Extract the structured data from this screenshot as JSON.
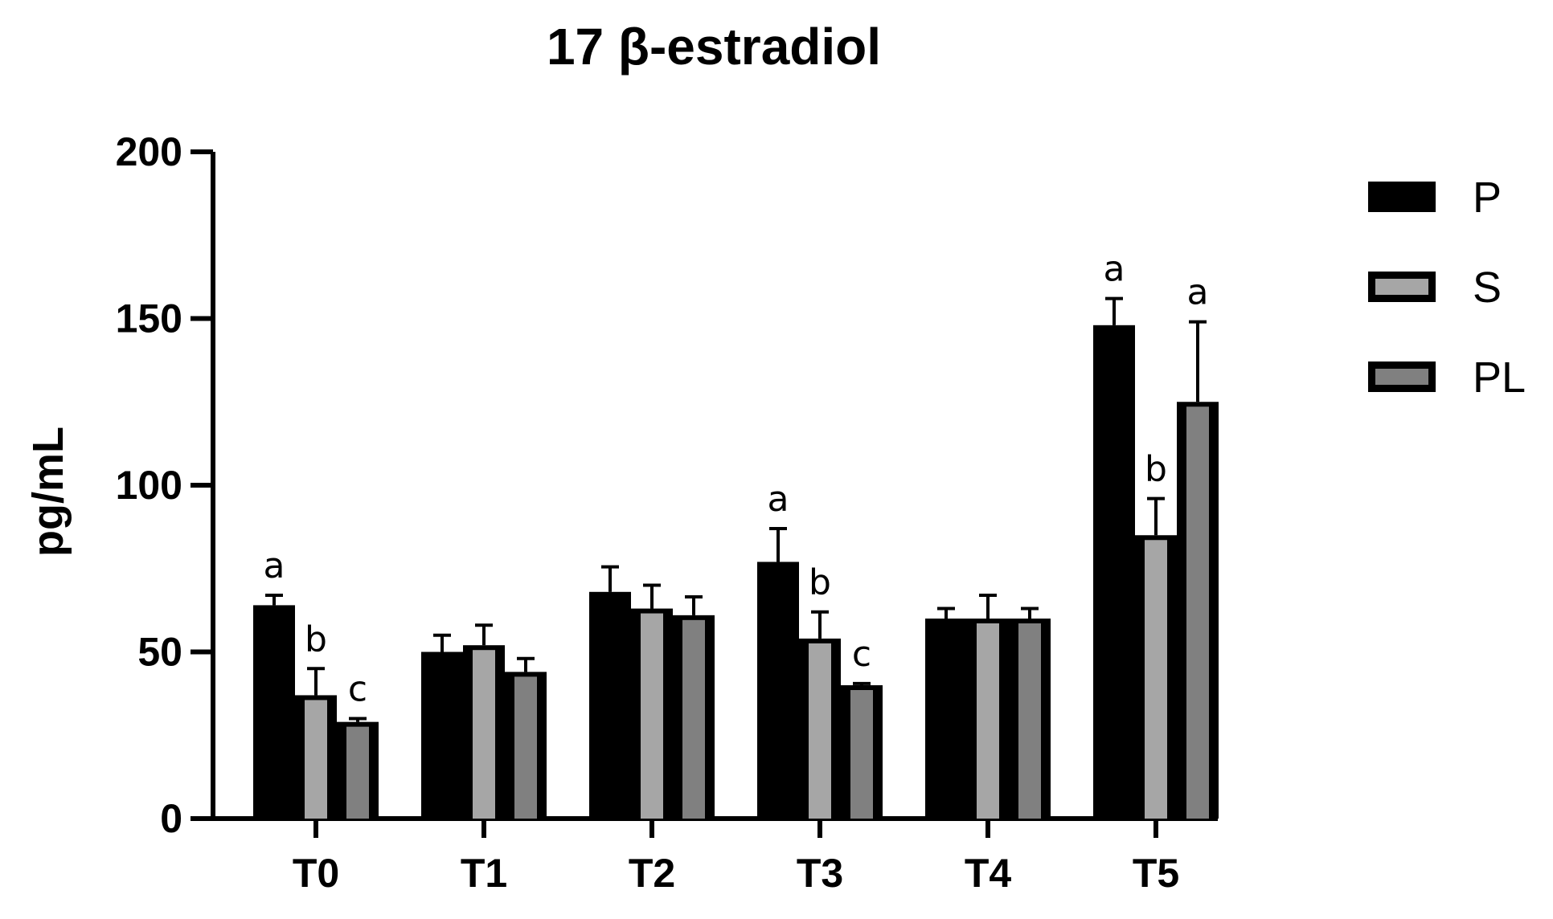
{
  "chart_data": {
    "type": "bar",
    "title": "17 β-estradiol",
    "xlabel": "",
    "ylabel": "pg/mL",
    "ylim": [
      0,
      200
    ],
    "yticks": [
      0,
      50,
      100,
      150,
      200
    ],
    "categories": [
      "T0",
      "T1",
      "T2",
      "T3",
      "T4",
      "T5"
    ],
    "series": [
      {
        "name": "P",
        "color": "#000000",
        "values": [
          64,
          50,
          68,
          77,
          60,
          148
        ],
        "errors": [
          3,
          5,
          7.5,
          10,
          3,
          8
        ]
      },
      {
        "name": "S",
        "color": "#a6a6a6",
        "values": [
          37,
          52,
          63,
          54,
          60,
          85
        ],
        "errors": [
          8,
          6,
          7,
          8,
          7,
          11
        ]
      },
      {
        "name": "PL",
        "color": "#808080",
        "values": [
          29,
          44,
          61,
          40,
          60,
          125
        ],
        "errors": [
          1,
          4,
          5.5,
          0.5,
          3,
          24
        ]
      }
    ],
    "annotations": [
      {
        "category": "T0",
        "series": "P",
        "text": "a"
      },
      {
        "category": "T0",
        "series": "S",
        "text": "b"
      },
      {
        "category": "T0",
        "series": "PL",
        "text": "c"
      },
      {
        "category": "T3",
        "series": "P",
        "text": "a"
      },
      {
        "category": "T3",
        "series": "S",
        "text": "b"
      },
      {
        "category": "T3",
        "series": "PL",
        "text": "c"
      },
      {
        "category": "T5",
        "series": "P",
        "text": "a"
      },
      {
        "category": "T5",
        "series": "S",
        "text": "b"
      },
      {
        "category": "T5",
        "series": "PL",
        "text": "a"
      }
    ],
    "legend": {
      "position": "top-right"
    },
    "grid": false
  }
}
